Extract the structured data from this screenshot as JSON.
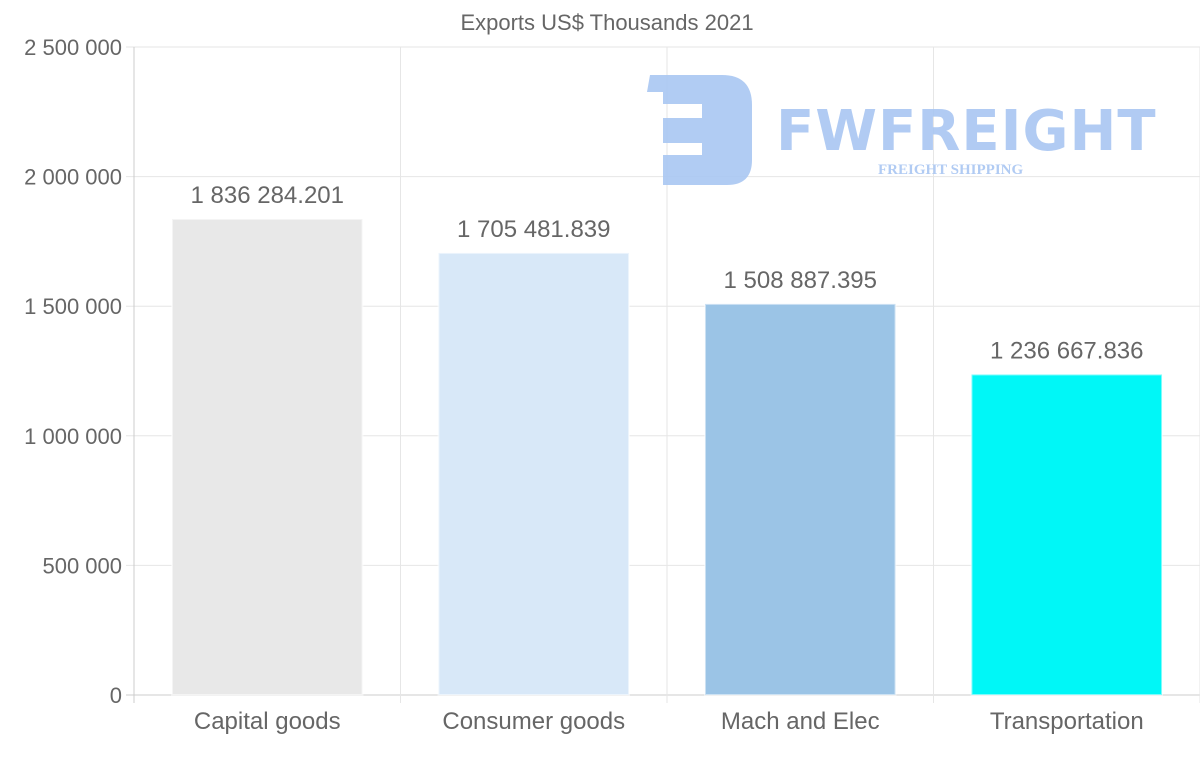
{
  "chart_data": {
    "type": "bar",
    "title": "Exports US$ Thousands 2021",
    "xlabel": "",
    "ylabel": "",
    "categories": [
      "Capital goods",
      "Consumer goods",
      "Mach and Elec",
      "Transportation"
    ],
    "values": [
      1836284.201,
      1705481.839,
      1508887.395,
      1236667.836
    ],
    "data_labels": [
      "1 836 284.201",
      "1 705 481.839",
      "1 508 887.395",
      "1 236 667.836"
    ],
    "colors": [
      "#e8e8e8",
      "#d8e8f8",
      "#9bc4e6",
      "#00f7f7"
    ],
    "ylim": [
      0,
      2500000
    ],
    "yticks": [
      0,
      500000,
      1000000,
      1500000,
      2000000,
      2500000
    ],
    "ytick_labels": [
      "0",
      "500 000",
      "1 000 000",
      "1 500 000",
      "2 000 000",
      "2 500 000"
    ],
    "grid": true,
    "legend": "none"
  },
  "watermark": {
    "brand": "FWFREIGHT",
    "tagline": "FREIGHT SHIPPING",
    "color": "#a9c6f2"
  }
}
